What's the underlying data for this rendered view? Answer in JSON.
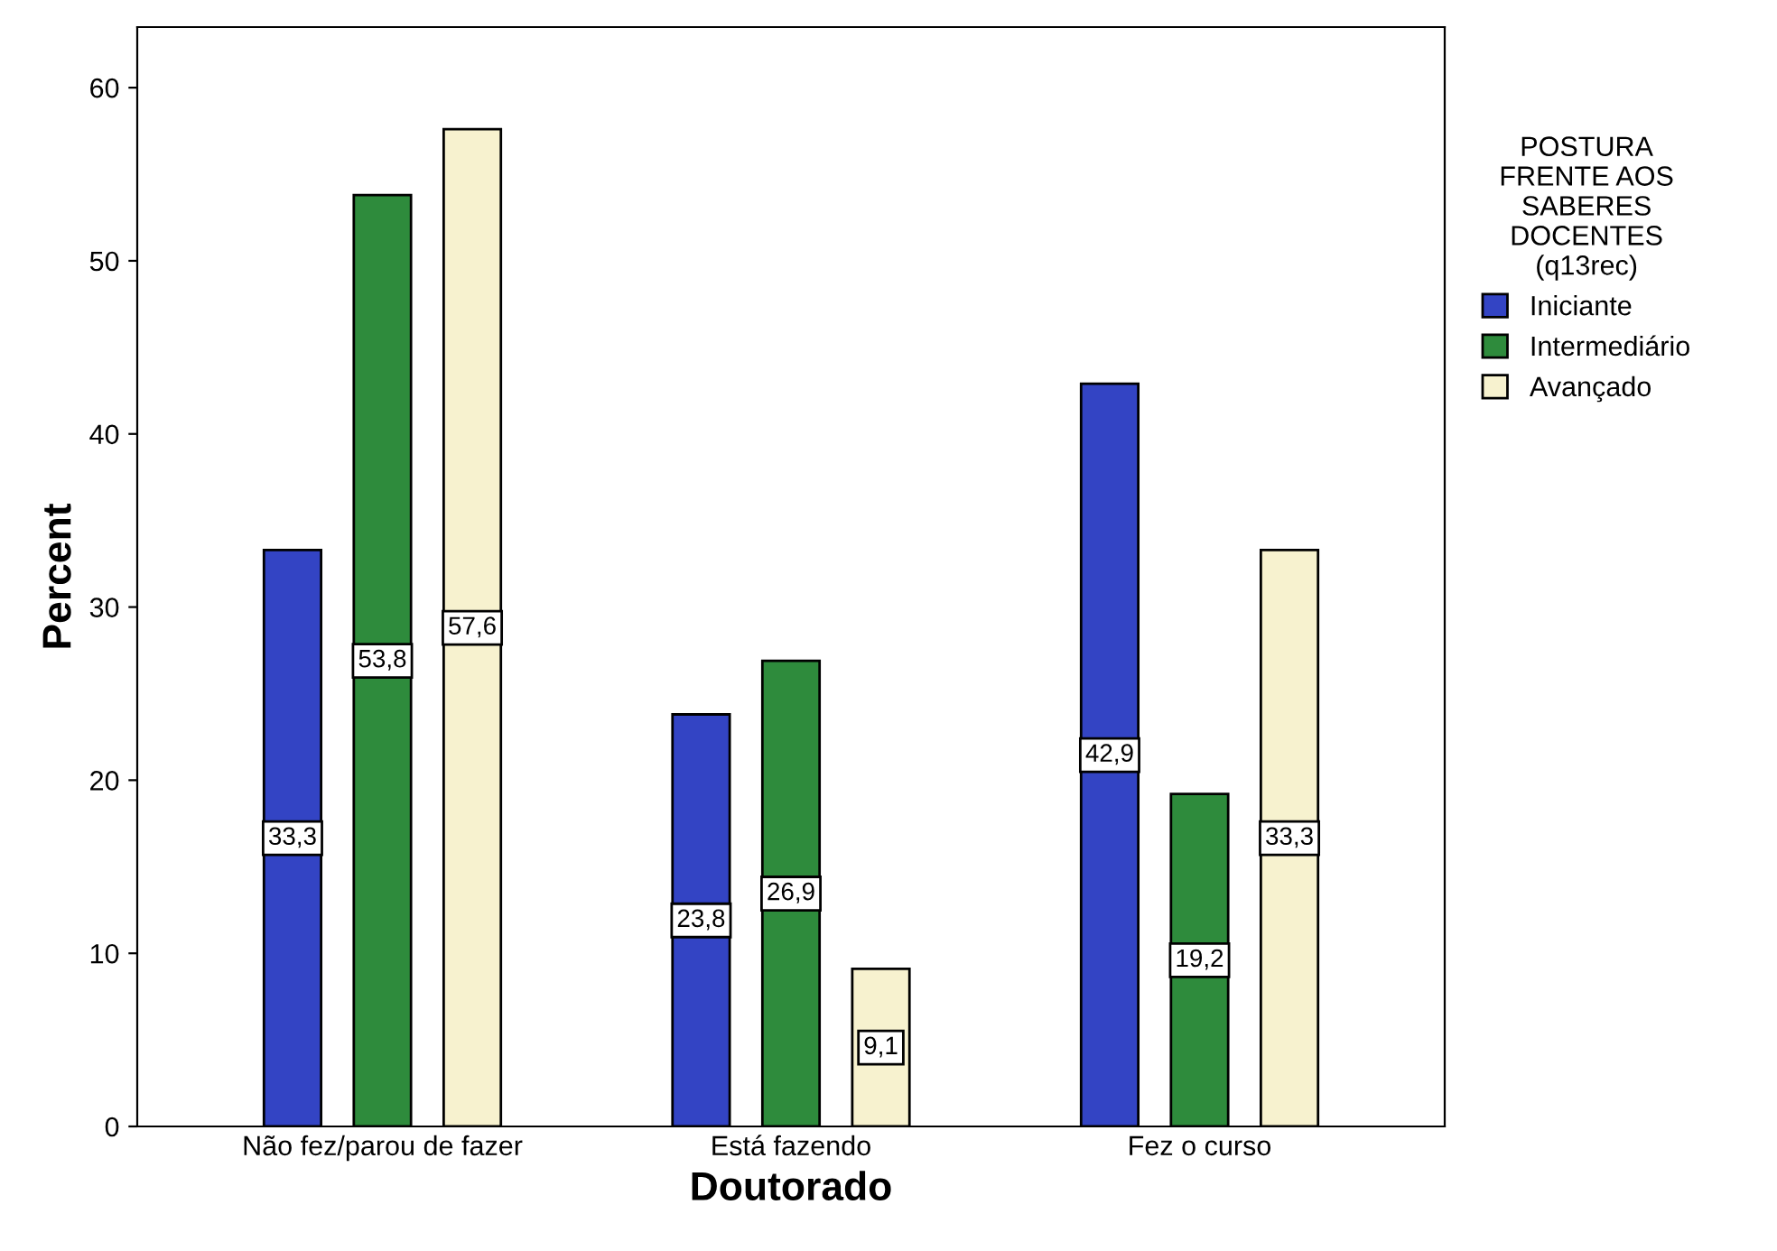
{
  "chart_data": {
    "type": "bar",
    "xlabel": "Doutorado",
    "ylabel": "Percent",
    "legend_title": "POSTURA\nFRENTE AOS\nSABERES\nDOCENTES\n(q13rec)",
    "categories": [
      "Não fez/parou de fazer",
      "Está fazendo",
      "Fez o curso"
    ],
    "series": [
      {
        "name": "Iniciante",
        "color": "#3344c4",
        "values": [
          33.3,
          23.8,
          42.9
        ],
        "value_labels": [
          "33,3",
          "23,8",
          "42,9"
        ]
      },
      {
        "name": "Intermediário",
        "color": "#2e8b3c",
        "values": [
          53.8,
          26.9,
          19.2
        ],
        "value_labels": [
          "53,8",
          "26,9",
          "19,2"
        ]
      },
      {
        "name": "Avançado",
        "color": "#f7f2cf",
        "values": [
          57.6,
          9.1,
          33.3
        ],
        "value_labels": [
          "57,6",
          "9,1",
          "33,3"
        ]
      }
    ],
    "ylim": [
      0,
      63.5
    ],
    "yticks": [
      0,
      10,
      20,
      30,
      40,
      50,
      60
    ],
    "grid": false,
    "legend": "right"
  }
}
